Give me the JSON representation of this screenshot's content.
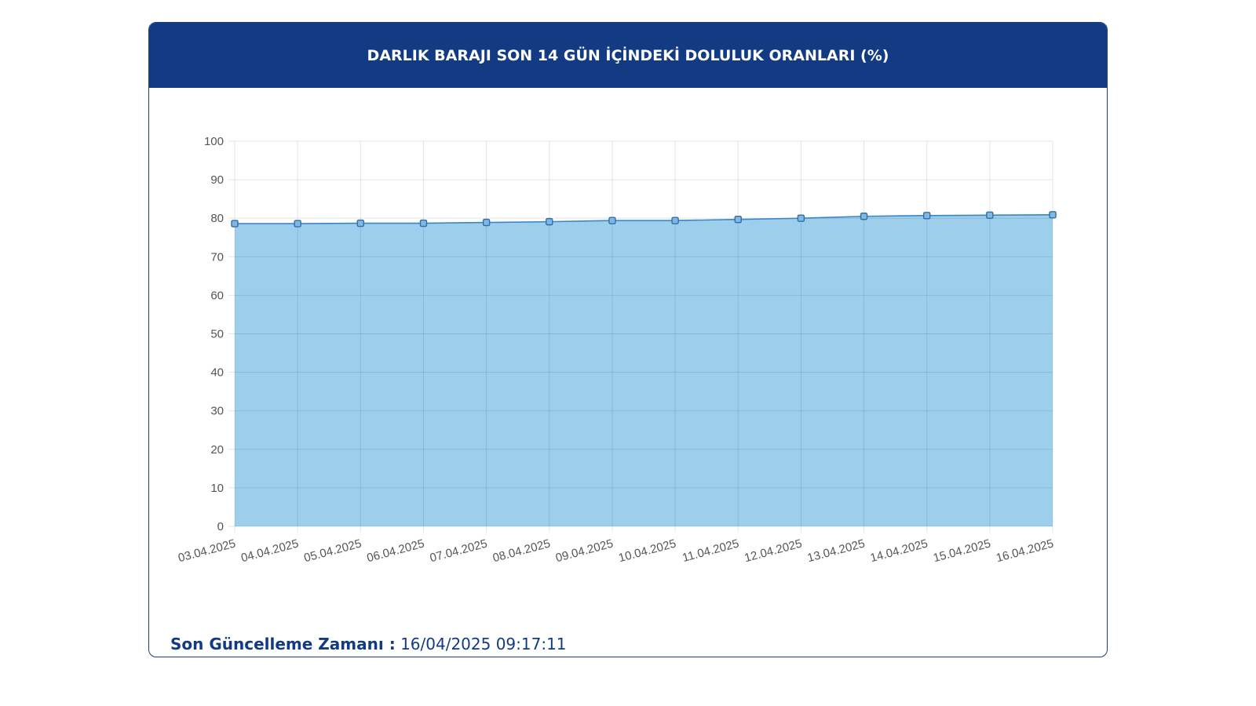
{
  "header": {
    "title": "DARLIK BARAJI SON 14 GÜN İÇİNDEKİ DOLULUK ORANLARI (%)"
  },
  "footer": {
    "label": "Son Güncelleme Zamanı :",
    "value": "16/04/2025 09:17:11"
  },
  "colors": {
    "header_bg": "#123b84",
    "line": "#3a86c4",
    "fill": "#9dcfec",
    "grid": "#e3e3e3",
    "tick_text": "#555555"
  },
  "chart_data": {
    "type": "area",
    "title": "DARLIK BARAJI SON 14 GÜN İÇİNDEKİ DOLULUK ORANLARI (%)",
    "xlabel": "",
    "ylabel": "",
    "x": [
      "03.04.2025",
      "04.04.2025",
      "05.04.2025",
      "06.04.2025",
      "07.04.2025",
      "08.04.2025",
      "09.04.2025",
      "10.04.2025",
      "11.04.2025",
      "12.04.2025",
      "13.04.2025",
      "14.04.2025",
      "15.04.2025",
      "16.04.2025"
    ],
    "series": [
      {
        "values": [
          78.6,
          78.6,
          78.7,
          78.7,
          78.9,
          79.1,
          79.4,
          79.4,
          79.7,
          80.0,
          80.5,
          80.7,
          80.8,
          80.9
        ]
      }
    ],
    "ylim": [
      0,
      100
    ],
    "yticks": [
      0,
      10,
      20,
      30,
      40,
      50,
      60,
      70,
      80,
      90,
      100
    ],
    "grid": true,
    "legend": "none"
  }
}
